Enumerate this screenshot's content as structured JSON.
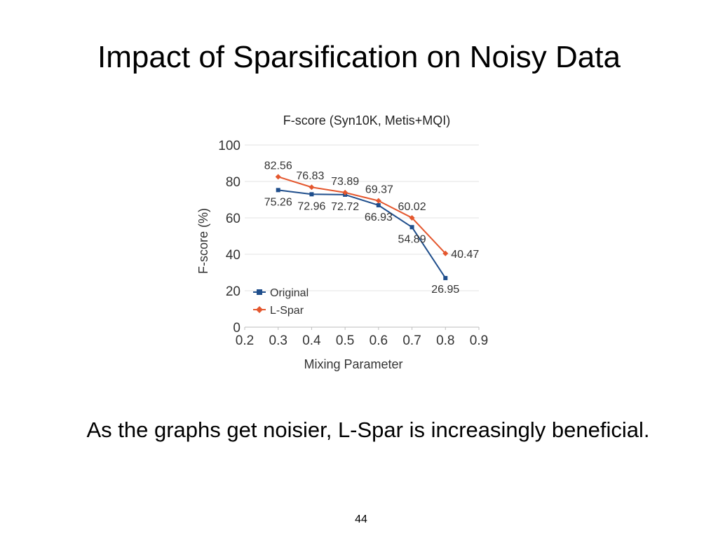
{
  "slide": {
    "title": "Impact of Sparsification on Noisy Data",
    "caption": "As the graphs get noisier, L-Spar is increasingly beneficial.",
    "page_number": "44"
  },
  "chart_data": {
    "type": "line",
    "title": "F-score (Syn10K, Metis+MQI)",
    "xlabel": "Mixing Parameter",
    "ylabel": "F-score (%)",
    "xlim": [
      0.2,
      0.9
    ],
    "ylim": [
      0,
      100
    ],
    "x_ticks": [
      "0.2",
      "0.3",
      "0.4",
      "0.5",
      "0.6",
      "0.7",
      "0.8",
      "0.9"
    ],
    "y_ticks": [
      "0",
      "20",
      "40",
      "60",
      "80",
      "100"
    ],
    "grid": "horizontal",
    "legend_position": "bottom-left",
    "series": [
      {
        "name": "Original",
        "color": "#1f4e8c",
        "marker": "square",
        "x": [
          0.3,
          0.4,
          0.5,
          0.6,
          0.7,
          0.8
        ],
        "values": [
          75.26,
          72.96,
          72.72,
          66.93,
          54.89,
          26.95
        ],
        "labels": [
          "75.26",
          "72.96",
          "72.72",
          "66.93",
          "54.89",
          "26.95"
        ]
      },
      {
        "name": "L-Spar",
        "color": "#e4572e",
        "marker": "diamond",
        "x": [
          0.3,
          0.4,
          0.5,
          0.6,
          0.7,
          0.8
        ],
        "values": [
          82.56,
          76.83,
          73.89,
          69.37,
          60.02,
          40.47
        ],
        "labels": [
          "82.56",
          "76.83",
          "73.89",
          "69.37",
          "60.02",
          "40.47"
        ]
      }
    ]
  }
}
